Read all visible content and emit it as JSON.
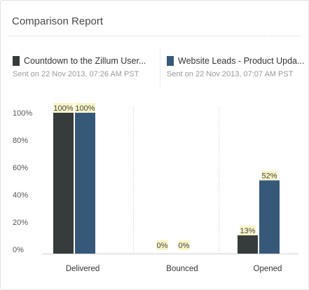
{
  "header": {
    "title": "Comparison Report"
  },
  "legend": [
    {
      "name": "Countdown to the Zillum User...",
      "sent": "Sent on 22 Nov 2013, 07:26 AM PST",
      "color": "#363b3b"
    },
    {
      "name": "Website Leads - Product Upda...",
      "sent": "Sent on 22 Nov 2013, 07:07 AM PST",
      "color": "#36597a"
    }
  ],
  "chart_data": {
    "type": "bar",
    "categories": [
      "Delivered",
      "Bounced",
      "Opened"
    ],
    "series": [
      {
        "name": "Countdown to the Zillum User...",
        "values": [
          100,
          0,
          13
        ],
        "labels": [
          "100%",
          "0%",
          "13%"
        ],
        "color": "#363b3b"
      },
      {
        "name": "Website Leads - Product Upda...",
        "values": [
          100,
          0,
          52
        ],
        "labels": [
          "100%",
          "0%",
          "52%"
        ],
        "color": "#36597a"
      }
    ],
    "yticks": [
      "0%",
      "20%",
      "40%",
      "60%",
      "80%",
      "100%"
    ],
    "ylim": [
      0,
      100
    ],
    "label_bg": "#faf5c8"
  }
}
